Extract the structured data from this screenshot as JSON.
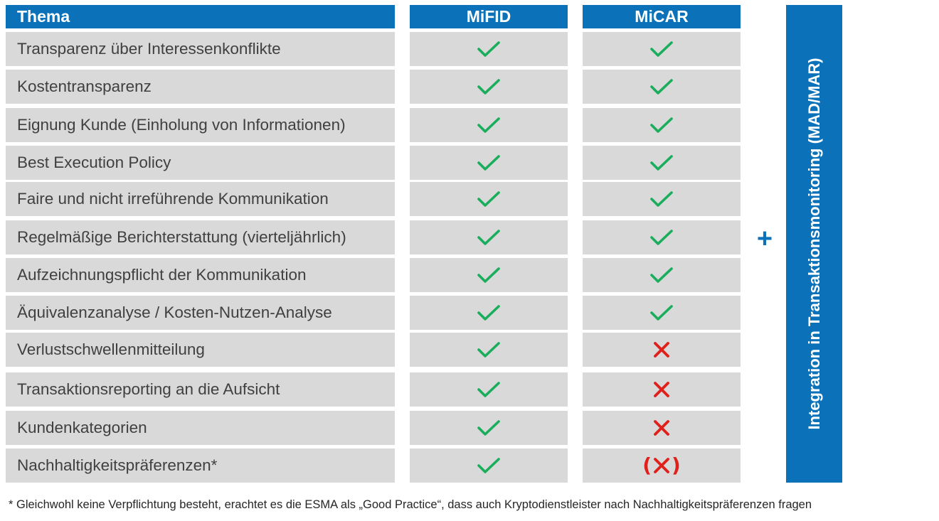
{
  "header": {
    "topic_label": "Thema",
    "mifid_label": "MiFID",
    "micar_label": "MiCAR"
  },
  "colors": {
    "header_blue": "#0b72b9",
    "row_gray": "#d9d9d9",
    "check_green": "#1aae5c",
    "cross_red": "#e0201a"
  },
  "rows": [
    {
      "topic": "Transparenz über Interessenkonflikte",
      "mifid": "check-icon",
      "micar": "check-icon"
    },
    {
      "topic": "Kostentransparenz",
      "mifid": "check-icon",
      "micar": "check-icon"
    },
    {
      "topic": "Eignung Kunde (Einholung von Informationen)",
      "mifid": "check-icon",
      "micar": "check-icon"
    },
    {
      "topic": "Best Execution Policy",
      "mifid": "check-icon",
      "micar": "check-icon"
    },
    {
      "topic": "Faire und nicht irreführende Kommunikation",
      "mifid": "check-icon",
      "micar": "check-icon"
    },
    {
      "topic": "Regelmäßige Berichterstattung (vierteljährlich)",
      "mifid": "check-icon",
      "micar": "check-icon"
    },
    {
      "topic": "Aufzeichnungspflicht der Kommunikation",
      "mifid": "check-icon",
      "micar": "check-icon"
    },
    {
      "topic": "Äquivalenzanalyse / Kosten-Nutzen-Analyse",
      "mifid": "check-icon",
      "micar": "check-icon"
    },
    {
      "topic": "Verlustschwellenmitteilung",
      "mifid": "check-icon",
      "micar": "cross-icon"
    },
    {
      "topic": "Transaktionsreporting an die Aufsicht",
      "mifid": "check-icon",
      "micar": "cross-icon"
    },
    {
      "topic": "Kundenkategorien",
      "mifid": "check-icon",
      "micar": "cross-icon"
    },
    {
      "topic": "Nachhaltigkeitspräferenzen*",
      "mifid": "check-icon",
      "micar": "cross-parenthesized-icon",
      "micar_paren_open": "(",
      "micar_paren_close": ")"
    }
  ],
  "plus_sign": "+",
  "side_label": "Integration in Transaktionsmonitoring (MAD/MAR)",
  "footnote": "* Gleichwohl keine Verpflichtung besteht, erachtet es die ESMA als „Good Practice“, dass auch Kryptodienstleister nach Nachhaltigkeitspräferenzen fragen"
}
